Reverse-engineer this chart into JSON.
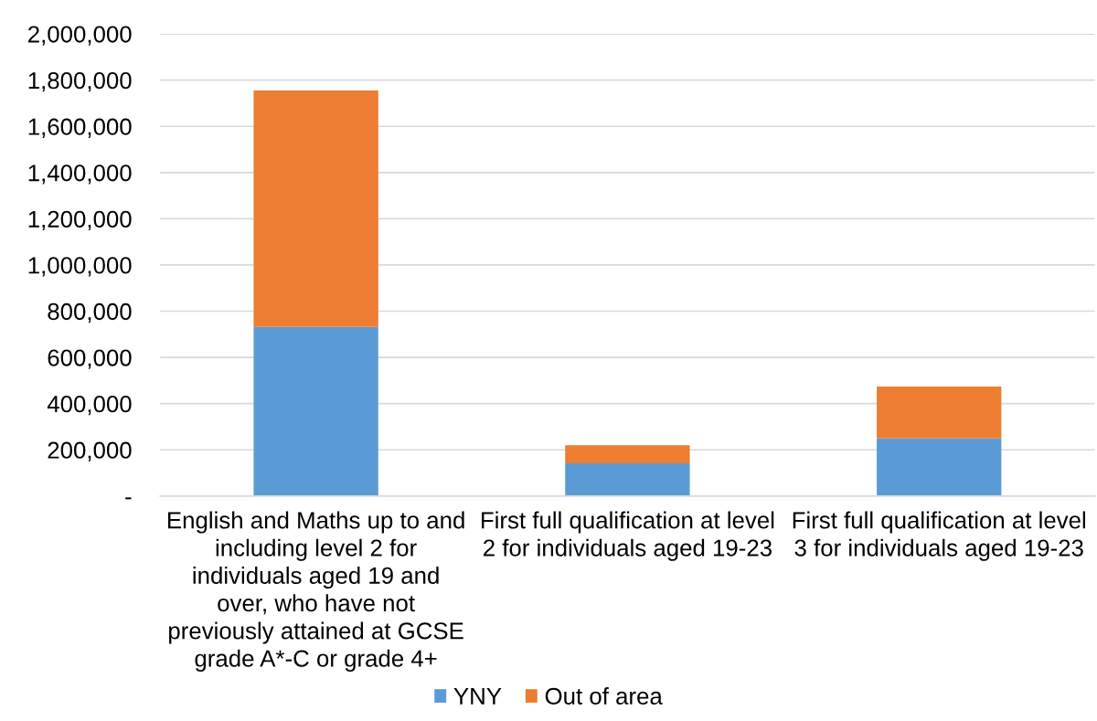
{
  "chart_data": {
    "type": "bar",
    "stacked": true,
    "categories": [
      "English and Maths up to and including level 2 for individuals aged 19 and over, who have not previously attained at GCSE grade A*-C or grade 4+",
      "First full qualification at level 2 for individuals aged 19-23",
      "First full qualification at level 3 for individuals aged 19-23"
    ],
    "series": [
      {
        "name": "YNY",
        "color": "#5b9bd5",
        "values": [
          732000,
          142000,
          249000
        ]
      },
      {
        "name": "Out of area",
        "color": "#ed7d31",
        "values": [
          1023000,
          78000,
          225000
        ]
      }
    ],
    "ylim": [
      0,
      2000000
    ],
    "yticks": [
      {
        "value": 0,
        "label": "-"
      },
      {
        "value": 200000,
        "label": "200,000"
      },
      {
        "value": 400000,
        "label": "400,000"
      },
      {
        "value": 600000,
        "label": "600,000"
      },
      {
        "value": 800000,
        "label": "800,000"
      },
      {
        "value": 1000000,
        "label": "1,000,000"
      },
      {
        "value": 1200000,
        "label": "1,200,000"
      },
      {
        "value": 1400000,
        "label": "1,400,000"
      },
      {
        "value": 1600000,
        "label": "1,600,000"
      },
      {
        "value": 1800000,
        "label": "1,800,000"
      },
      {
        "value": 2000000,
        "label": "2,000,000"
      }
    ],
    "grid": "y",
    "legend": "bottom"
  }
}
